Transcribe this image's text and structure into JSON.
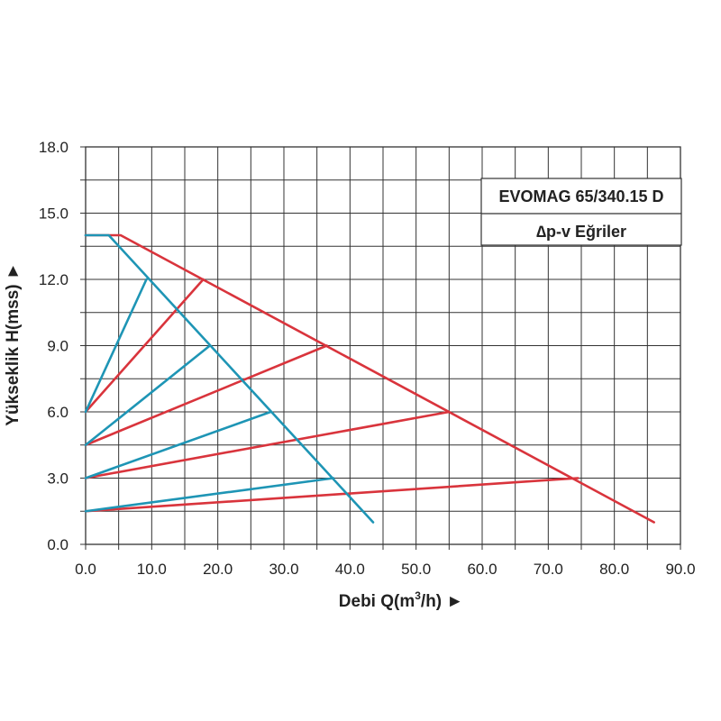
{
  "chart_data": {
    "type": "line",
    "title": "EVOMAG 65/340.15 D",
    "subtitle": "∆p-v Eğriler",
    "xlabel_main": "Debi Q(m",
    "xlabel_sup": "3",
    "xlabel_end": "/h) ►",
    "ylabel": "Yükseklik H(mss) ►",
    "xlim": [
      0,
      90
    ],
    "ylim": [
      0,
      18
    ],
    "x_ticks": [
      "0.0",
      "10.0",
      "20.0",
      "30.0",
      "40.0",
      "50.0",
      "60.0",
      "70.0",
      "80.0",
      "90.0"
    ],
    "y_ticks": [
      "0.0",
      "3.0",
      "6.0",
      "9.0",
      "12.0",
      "15.0",
      "18.0"
    ],
    "x_minor_step": 5,
    "y_minor_step": 1.5,
    "grid": true,
    "legend_position": "top-right",
    "colors": {
      "red": "#d9343c",
      "blue": "#1e95b5",
      "grid": "#333333"
    },
    "series": [
      {
        "color": "red",
        "x": [
          0,
          5.3,
          86
        ],
        "y": [
          14,
          14,
          1
        ]
      },
      {
        "color": "red",
        "x": [
          0,
          17.8
        ],
        "y": [
          6,
          12
        ]
      },
      {
        "color": "red",
        "x": [
          0,
          36.5
        ],
        "y": [
          4.5,
          9
        ]
      },
      {
        "color": "red",
        "x": [
          0,
          55
        ],
        "y": [
          3,
          6
        ]
      },
      {
        "color": "red",
        "x": [
          0,
          74.5
        ],
        "y": [
          1.5,
          3
        ]
      },
      {
        "color": "blue",
        "x": [
          0,
          3.5,
          43.5
        ],
        "y": [
          14,
          14,
          1
        ]
      },
      {
        "color": "blue",
        "x": [
          0,
          9.2
        ],
        "y": [
          6,
          12
        ]
      },
      {
        "color": "blue",
        "x": [
          0,
          18.8
        ],
        "y": [
          4.5,
          9
        ]
      },
      {
        "color": "blue",
        "x": [
          0,
          28
        ],
        "y": [
          3,
          6
        ]
      },
      {
        "color": "blue",
        "x": [
          0,
          37.5
        ],
        "y": [
          1.5,
          3
        ]
      }
    ]
  }
}
